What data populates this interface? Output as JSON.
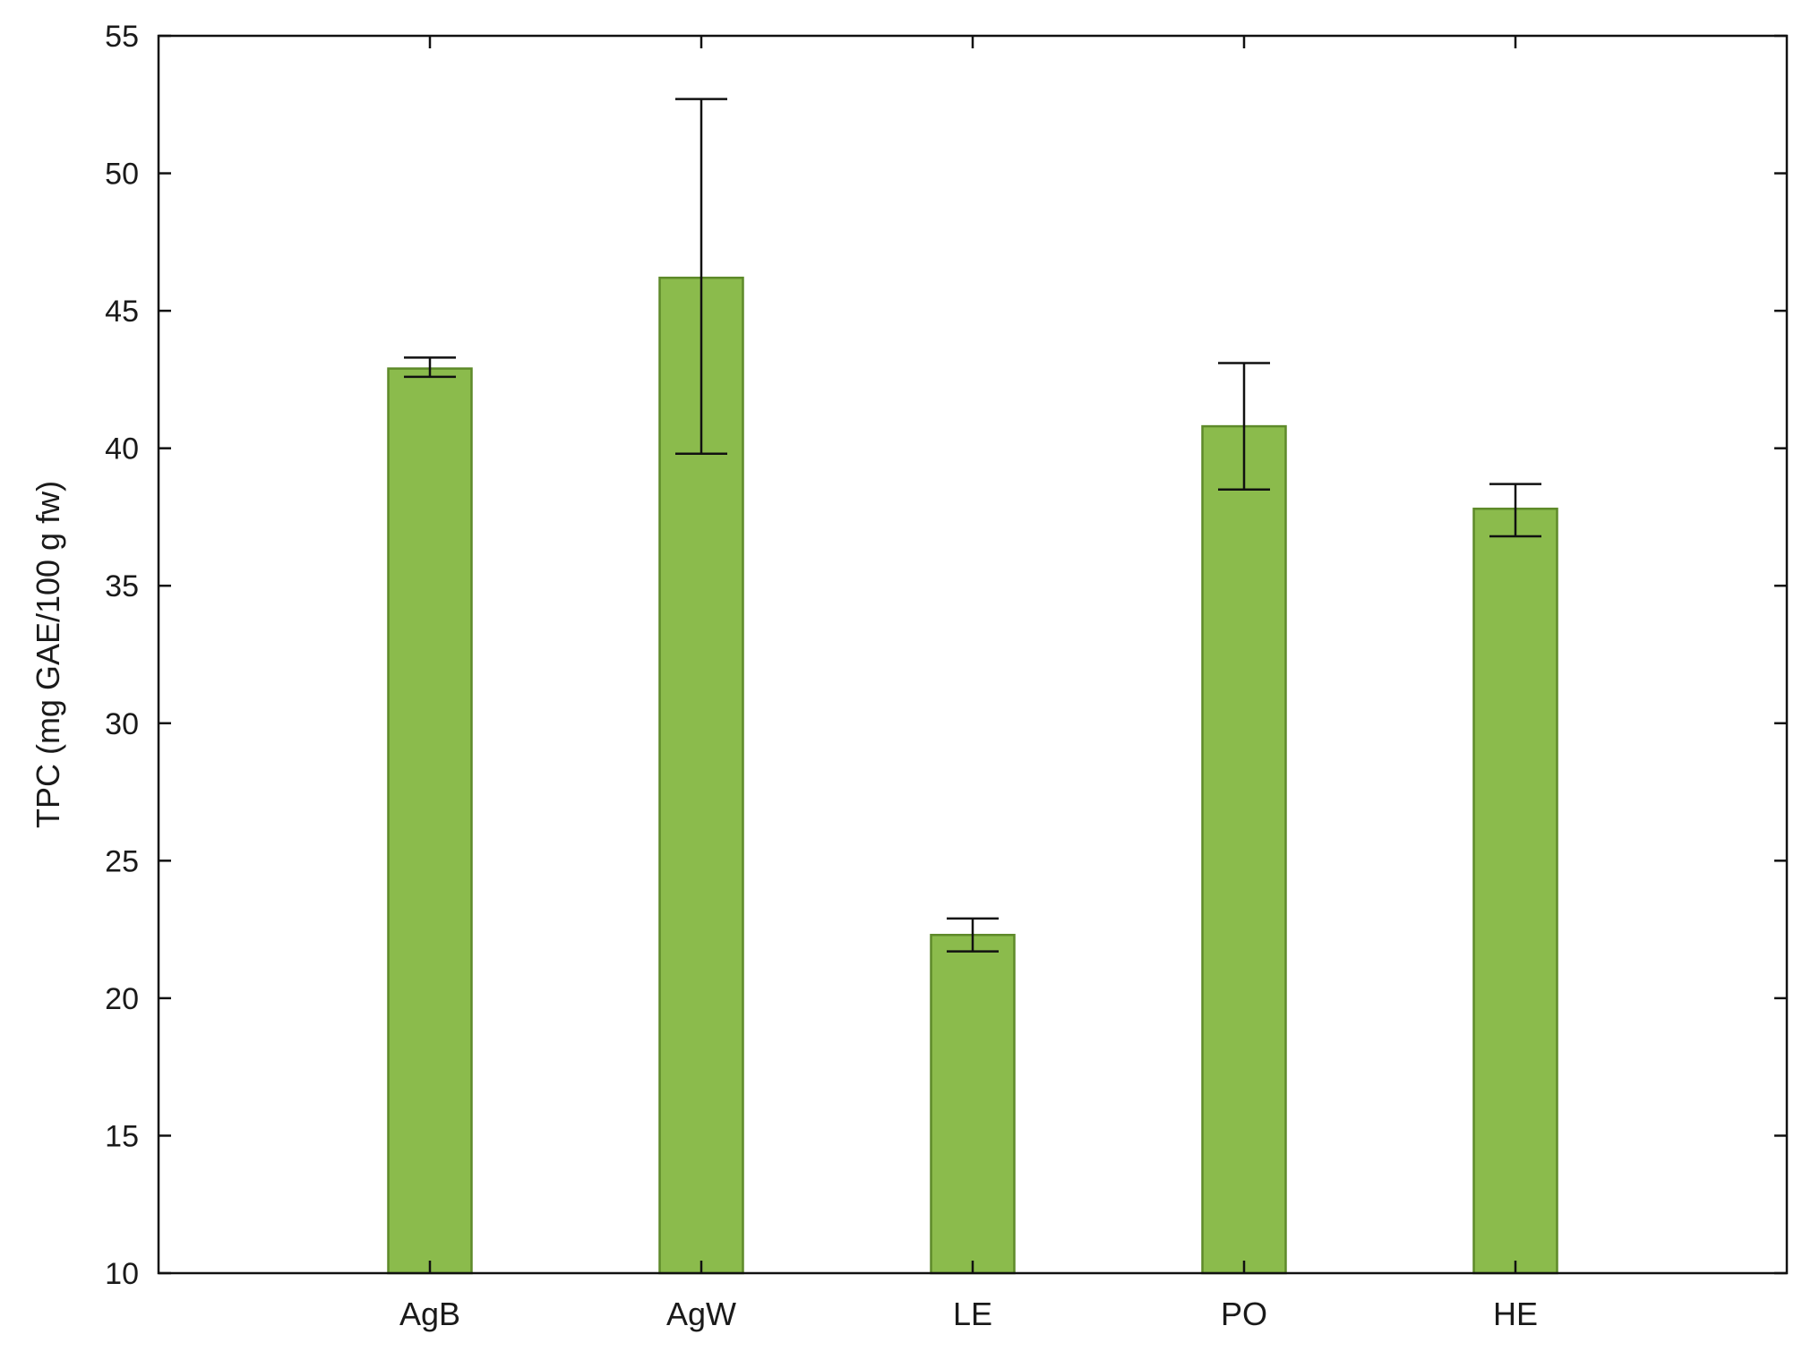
{
  "chart_data": {
    "type": "bar",
    "title": "",
    "xlabel": "",
    "ylabel": "TPC (mg GAE/100 g fw)",
    "ylim": [
      10,
      55
    ],
    "yticks": [
      10,
      15,
      20,
      25,
      30,
      35,
      40,
      45,
      50,
      55
    ],
    "categories": [
      "AgB",
      "AgW",
      "LE",
      "PO",
      "HE"
    ],
    "values": [
      42.9,
      46.2,
      22.3,
      40.8,
      37.8
    ],
    "error_low": [
      42.6,
      39.8,
      21.7,
      38.5,
      36.8
    ],
    "error_high": [
      43.3,
      52.7,
      22.9,
      43.1,
      38.7
    ],
    "grid": false,
    "legend": "none",
    "colors": {
      "bar_fill": "#8bbb4c",
      "bar_stroke": "#5e8a2a",
      "error_bar": "#111111",
      "axis": "#111111"
    }
  }
}
